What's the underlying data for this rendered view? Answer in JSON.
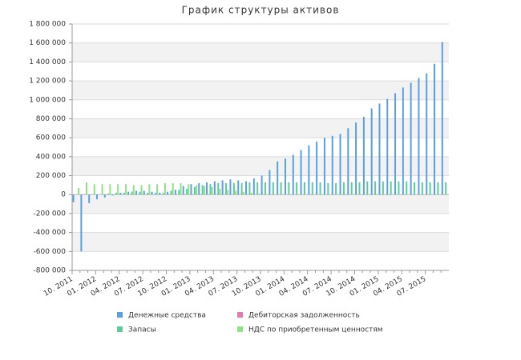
{
  "chart_data": {
    "type": "bar",
    "title": "График структуры активов",
    "categories": [
      "10. 2011",
      null,
      null,
      "01. 2012",
      null,
      null,
      "04. 2012",
      null,
      null,
      "07. 2012",
      null,
      null,
      "10. 2012",
      null,
      null,
      "01. 2013",
      null,
      null,
      "04. 2013",
      null,
      null,
      "07. 2013",
      null,
      null,
      "10. 2013",
      null,
      null,
      "01. 2014",
      null,
      null,
      "04. 2014",
      null,
      null,
      "07. 2014",
      null,
      null,
      "10. 2014",
      null,
      null,
      "01. 2015",
      null,
      null,
      "04. 2015",
      null,
      null,
      "07. 2015",
      null,
      null
    ],
    "series": [
      {
        "name": "Денежные средства",
        "color": "#5b9fe0",
        "values": [
          -80000,
          -600000,
          -90000,
          -50000,
          -30000,
          -10000,
          20000,
          30000,
          40000,
          40000,
          30000,
          20000,
          30000,
          50000,
          90000,
          110000,
          120000,
          130000,
          140000,
          150000,
          160000,
          150000,
          140000,
          170000,
          200000,
          260000,
          350000,
          380000,
          420000,
          470000,
          520000,
          560000,
          600000,
          620000,
          640000,
          700000,
          760000,
          820000,
          910000,
          960000,
          1010000,
          1070000,
          1130000,
          1180000,
          1230000,
          1280000,
          1380000,
          1610000
        ]
      },
      {
        "name": "Дебиторская задолженность",
        "color": "#e07bb0",
        "values": [
          0,
          0,
          0,
          0,
          0,
          0,
          0,
          0,
          0,
          0,
          0,
          0,
          0,
          0,
          0,
          0,
          0,
          0,
          0,
          0,
          0,
          0,
          0,
          0,
          0,
          0,
          0,
          0,
          0,
          0,
          0,
          0,
          0,
          0,
          0,
          0,
          0,
          0,
          0,
          0,
          0,
          0,
          0,
          0,
          0,
          0,
          0,
          0
        ]
      },
      {
        "name": "Запасы",
        "color": "#5ccc9a",
        "values": [
          0,
          0,
          0,
          0,
          10000,
          20000,
          20000,
          30000,
          30000,
          20000,
          20000,
          20000,
          40000,
          50000,
          60000,
          80000,
          100000,
          110000,
          120000,
          120000,
          120000,
          120000,
          130000,
          130000,
          130000,
          130000,
          130000,
          130000,
          130000,
          130000,
          130000,
          130000,
          120000,
          120000,
          130000,
          130000,
          130000,
          140000,
          140000,
          140000,
          140000,
          140000,
          140000,
          130000,
          130000,
          130000,
          130000,
          130000
        ]
      },
      {
        "name": "НДС по приобретенным ценностям",
        "color": "#90e08a",
        "values": [
          70000,
          130000,
          110000,
          110000,
          110000,
          110000,
          110000,
          100000,
          100000,
          110000,
          110000,
          120000,
          120000,
          120000,
          110000,
          100000,
          90000,
          80000,
          60000,
          50000,
          40000,
          30000,
          20000,
          10000,
          0,
          0,
          0,
          0,
          0,
          0,
          0,
          0,
          0,
          0,
          0,
          0,
          0,
          0,
          0,
          0,
          0,
          0,
          0,
          0,
          0,
          0,
          0,
          0
        ]
      }
    ],
    "ylim": [
      -800000,
      1800000
    ],
    "yticks": [
      {
        "value": -800000,
        "label": "-800 000"
      },
      {
        "value": -600000,
        "label": "-600 000"
      },
      {
        "value": -400000,
        "label": "-400 000"
      },
      {
        "value": -200000,
        "label": "-200 000"
      },
      0,
      {
        "value": 200000,
        "label": "200 000"
      },
      {
        "value": 400000,
        "label": "400 000"
      },
      {
        "value": 600000,
        "label": "600 000"
      },
      {
        "value": 800000,
        "label": "800 000"
      },
      {
        "value": 1000000,
        "label": "1 000 000"
      },
      {
        "value": 1200000,
        "label": "1 200 000"
      },
      {
        "value": 1400000,
        "label": "1 400 000"
      },
      {
        "value": 1600000,
        "label": "1 600 000"
      },
      {
        "value": 1800000,
        "label": "1 800 000"
      }
    ],
    "grid": true
  }
}
